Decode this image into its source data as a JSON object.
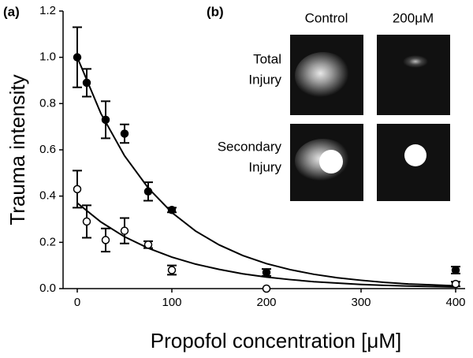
{
  "chart_data": {
    "type": "scatter",
    "panel_label": "(a)",
    "x_label": "Propofol concentration [μM]",
    "y_label": "Trauma intensity",
    "xlim": [
      -15,
      410
    ],
    "ylim": [
      0,
      1.2
    ],
    "xticks": [
      0,
      100,
      200,
      300,
      400
    ],
    "yticks": [
      {
        "value": 0,
        "label": "0.0"
      },
      0.2,
      0.4,
      0.6,
      0.8,
      {
        "value": 1,
        "label": "1.0"
      },
      1.2
    ],
    "x": [
      0,
      10,
      30,
      50,
      75,
      100,
      200,
      400
    ],
    "series": [
      {
        "color": "#000000",
        "marker": "filled",
        "values": [
          1.0,
          0.89,
          0.73,
          0.67,
          0.42,
          0.34,
          0.07,
          0.08
        ],
        "errors": [
          0.13,
          0.06,
          0.08,
          0.04,
          0.04,
          0.01,
          0.015,
          0.015
        ]
      },
      {
        "color": "#000000",
        "marker": "open",
        "values": [
          0.43,
          0.29,
          0.21,
          0.25,
          0.19,
          0.08,
          0.0,
          0.02
        ],
        "errors": [
          0.08,
          0.07,
          0.05,
          0.055,
          0.015,
          0.02,
          0,
          0.01
        ]
      }
    ],
    "fits": [
      {
        "color": "#000000",
        "x": [
          0,
          25,
          50,
          75,
          100,
          125,
          150,
          175,
          200,
          225,
          250,
          275,
          300,
          325,
          350,
          375,
          400
        ],
        "values": [
          1.0,
          0.757,
          0.574,
          0.435,
          0.329,
          0.249,
          0.189,
          0.143,
          0.108,
          0.082,
          0.062,
          0.047,
          0.036,
          0.027,
          0.02,
          0.016,
          0.012
        ]
      },
      {
        "color": "#000000",
        "x": [
          0,
          25,
          50,
          75,
          100,
          125,
          150,
          175,
          200,
          225,
          250,
          275,
          300,
          325,
          350,
          375,
          400
        ],
        "values": [
          0.37,
          0.288,
          0.224,
          0.175,
          0.136,
          0.106,
          0.083,
          0.064,
          0.05,
          0.039,
          0.03,
          0.024,
          0.018,
          0.014,
          0.011,
          0.009,
          0.007
        ]
      }
    ]
  },
  "inset": {
    "panel_label": "(b)",
    "columns": [
      "Control",
      "200μM"
    ],
    "rows": [
      [
        "Total",
        "Injury"
      ],
      [
        "Secondary",
        "Injury"
      ]
    ]
  }
}
